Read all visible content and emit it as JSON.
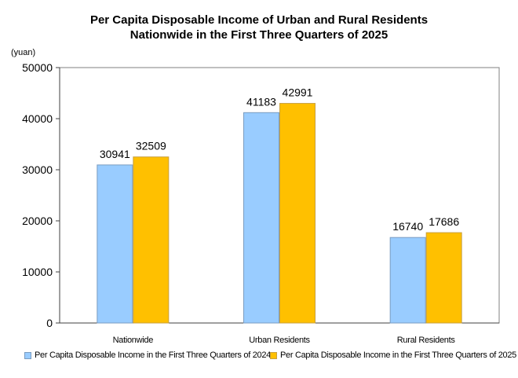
{
  "chart_data": {
    "type": "bar",
    "title_line1": "Per Capita Disposable Income of Urban and Rural Residents",
    "title_line2": "Nationwide in the First Three Quarters of 2025",
    "ylabel": "(yuan)",
    "xlabel": "",
    "ylim": [
      0,
      50000
    ],
    "yticks": [
      0,
      10000,
      20000,
      30000,
      40000,
      50000
    ],
    "ytick_labels": [
      "0",
      "10000",
      "20000",
      "30000",
      "40000",
      "50000"
    ],
    "categories": [
      "Nationwide",
      "Urban Residents",
      "Rural Residents"
    ],
    "series": [
      {
        "name": "Per Capita Disposable Income in the First Three Quarters of 2024",
        "color": "#99ccff",
        "border": "#7a9cc0",
        "values": [
          30941,
          41183,
          16740
        ]
      },
      {
        "name": "Per Capita Disposable Income in the First Three Quarters of 2025",
        "color": "#ffc000",
        "border": "#c8a040",
        "values": [
          32509,
          42991,
          17686
        ]
      }
    ],
    "data_labels": [
      [
        "30941",
        "41183",
        "16740"
      ],
      [
        "32509",
        "42991",
        "17686"
      ]
    ],
    "grid": false,
    "legend_position": "bottom"
  }
}
